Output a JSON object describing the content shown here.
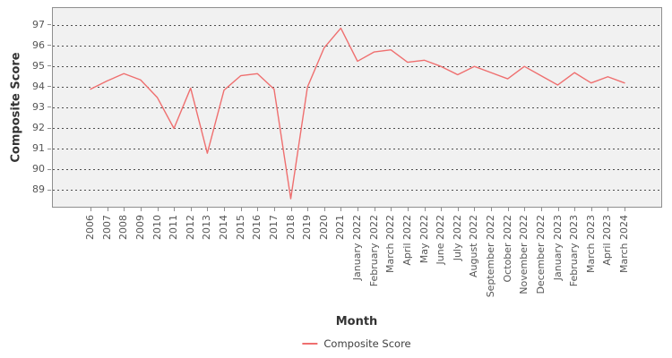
{
  "chart_data": {
    "type": "line",
    "title": "",
    "xlabel": "Month",
    "ylabel": "Composite Score",
    "categories": [
      "2006",
      "2007",
      "2008",
      "2009",
      "2010",
      "2011",
      "2012",
      "2013",
      "2014",
      "2015",
      "2016",
      "2017",
      "2018",
      "2019",
      "2020",
      "2021",
      "January 2022",
      "February 2022",
      "March 2022",
      "April 2022",
      "May 2022",
      "June 2022",
      "July 2022",
      "August 2022",
      "September 2022",
      "October 2022",
      "November 2022",
      "December 2022",
      "January 2023",
      "February 2023",
      "March 2023",
      "April 2023",
      "March 2024"
    ],
    "series": [
      {
        "name": "Composite Score",
        "color": "#ef6f6f",
        "values": [
          93.9,
          94.3,
          94.65,
          94.35,
          93.5,
          92.0,
          93.95,
          90.8,
          93.85,
          94.55,
          94.65,
          93.9,
          88.6,
          94.0,
          95.9,
          96.85,
          95.25,
          95.7,
          95.8,
          95.2,
          95.3,
          95.0,
          94.6,
          95.0,
          94.7,
          94.4,
          95.0,
          94.55,
          94.1,
          94.7,
          94.2,
          94.5,
          94.2
        ]
      }
    ],
    "yticks": [
      89,
      90,
      91,
      92,
      93,
      94,
      95,
      96,
      97
    ],
    "ylim": [
      88.2,
      97.9
    ],
    "grid": true,
    "xtick_rotation": 90,
    "legend_position": "bottom"
  },
  "colors": {
    "line": "#ef6f6f",
    "plot_bg": "#f1f1f1",
    "plot_border": "#8f8f8f",
    "gridline": "#4f4f4f"
  }
}
